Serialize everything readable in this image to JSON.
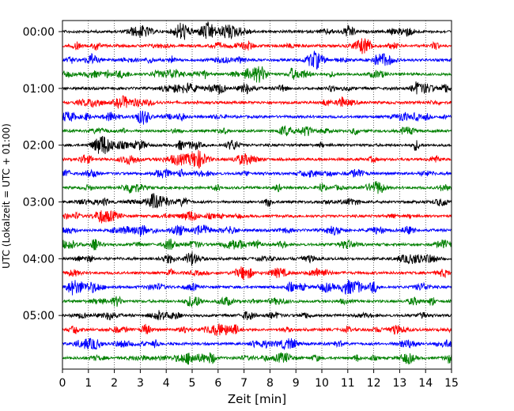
{
  "chart_data": {
    "type": "line",
    "title": "",
    "xlabel": "Zeit  [min]",
    "ylabel": "UTC (Lokalzeit = UTC + 01:00)",
    "xlim": [
      0,
      15
    ],
    "x_ticks": [
      0,
      1,
      2,
      3,
      4,
      5,
      6,
      7,
      8,
      9,
      10,
      11,
      12,
      13,
      14,
      15
    ],
    "y_ticks": [
      "00:00",
      "01:00",
      "02:00",
      "03:00",
      "04:00",
      "05:00"
    ],
    "trace_interval_minutes": 15,
    "num_traces": 24,
    "trace_colors": [
      "#000000",
      "#ff0000",
      "#0000ff",
      "#008000"
    ],
    "grid": "vertical dotted lines at each minute",
    "legend": "none"
  }
}
